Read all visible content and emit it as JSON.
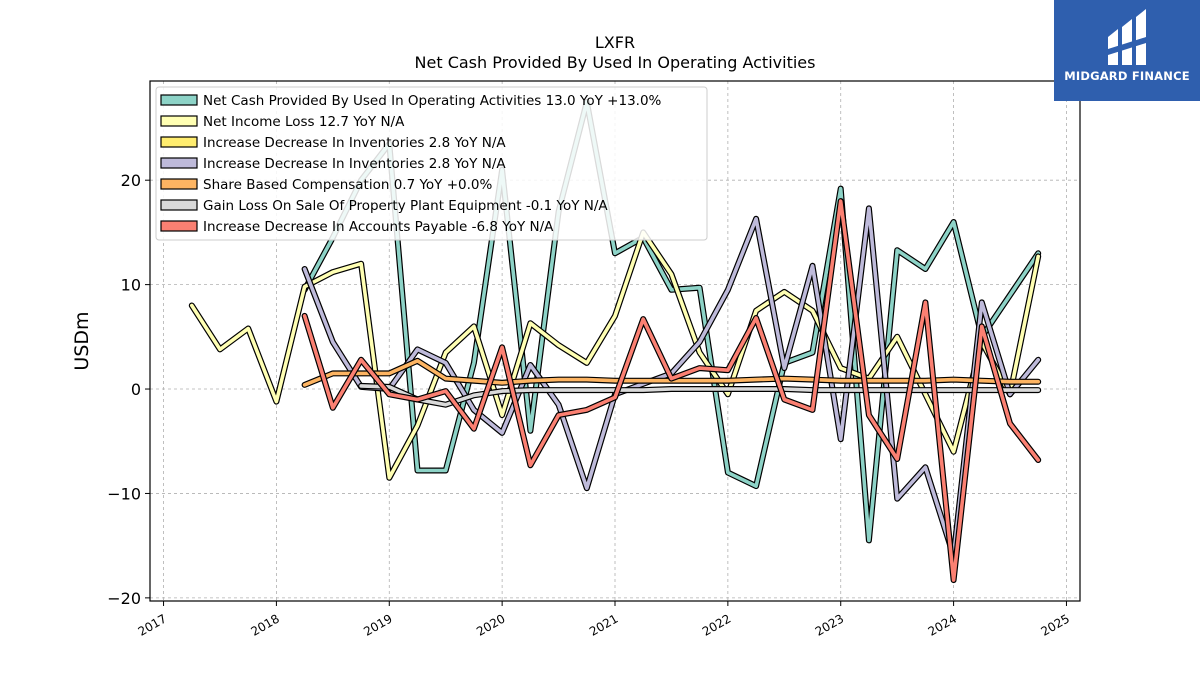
{
  "brand": {
    "name": "MIDGARD FINANCE",
    "bg_color": "#2f5fae"
  },
  "chart_data": {
    "type": "line",
    "title": "LXFR",
    "subtitle": "Net Cash Provided By Used In Operating Activities",
    "xlabel": "",
    "ylabel": "USDm",
    "xlim": [
      2016.88,
      2025.12
    ],
    "ylim": [
      -20.3,
      29.5
    ],
    "x_ticks": [
      2017,
      2018,
      2019,
      2020,
      2021,
      2022,
      2023,
      2024,
      2025
    ],
    "x_tick_labels": [
      "2017",
      "2018",
      "2019",
      "2020",
      "2021",
      "2022",
      "2023",
      "2024",
      "2025"
    ],
    "y_ticks": [
      -20,
      -10,
      0,
      10,
      20
    ],
    "y_tick_labels": [
      "−20",
      "−10",
      "0",
      "10",
      "20"
    ],
    "grid": true,
    "legend_position": "top-left",
    "series": [
      {
        "name": "Net Cash Provided By Used In Operating Activities",
        "legend_label": "Net Cash Provided By Used In Operating Activities  13.0 YoY +13.0%",
        "color": "#8dd3c7",
        "x": [
          2018.25,
          2018.5,
          2018.75,
          2019.0,
          2019.25,
          2019.5,
          2019.75,
          2020.0,
          2020.25,
          2020.5,
          2020.75,
          2021.0,
          2021.25,
          2021.5,
          2021.75,
          2022.0,
          2022.25,
          2022.5,
          2022.75,
          2023.0,
          2023.25,
          2023.5,
          2023.75,
          2024.0,
          2024.25,
          2024.5,
          2024.75
        ],
        "values": [
          9.5,
          14.5,
          20.0,
          23.5,
          -7.8,
          -7.8,
          2.5,
          21.0,
          -4.0,
          17.0,
          27.5,
          13.0,
          14.5,
          9.5,
          9.7,
          -8.0,
          -9.3,
          2.5,
          3.5,
          19.2,
          -14.5,
          13.3,
          11.5,
          16.0,
          5.0,
          9.0,
          13.0
        ]
      },
      {
        "name": "Net Income Loss",
        "legend_label": "Net Income Loss  12.7 YoY N/A",
        "color": "#ffffb3",
        "x": [
          2017.25,
          2017.5,
          2017.75,
          2018.0,
          2018.25,
          2018.5,
          2018.75,
          2019.0,
          2019.25,
          2019.5,
          2019.75,
          2020.0,
          2020.25,
          2020.5,
          2020.75,
          2021.0,
          2021.25,
          2021.5,
          2021.75,
          2022.0,
          2022.25,
          2022.5,
          2022.75,
          2023.0,
          2023.25,
          2023.5,
          2023.75,
          2024.0,
          2024.25,
          2024.5,
          2024.75
        ],
        "values": [
          8.0,
          3.8,
          5.8,
          -1.2,
          9.8,
          11.2,
          12.0,
          -8.5,
          -3.5,
          3.5,
          6.0,
          -2.5,
          6.3,
          4.2,
          2.5,
          7.0,
          15.0,
          11.0,
          3.5,
          -0.5,
          7.5,
          9.3,
          7.5,
          2.0,
          1.0,
          5.0,
          -0.5,
          -6.0,
          4.5,
          -0.5,
          12.7
        ]
      },
      {
        "name": "Increase Decrease In Inventories",
        "legend_label": "Increase Decrease In Inventories  2.8 YoY N/A",
        "color": "#ffed6f",
        "x": [],
        "values": []
      },
      {
        "name": "Increase Decrease In Inventories",
        "legend_label": "Increase Decrease In Inventories  2.8 YoY N/A",
        "color": "#bebada",
        "x": [
          2018.25,
          2018.5,
          2018.75,
          2019.0,
          2019.25,
          2019.5,
          2019.75,
          2020.0,
          2020.25,
          2020.5,
          2020.75,
          2021.0,
          2021.25,
          2021.5,
          2021.75,
          2022.0,
          2022.25,
          2022.5,
          2022.75,
          2023.0,
          2023.25,
          2023.5,
          2023.75,
          2024.0,
          2024.25,
          2024.5,
          2024.75
        ],
        "values": [
          11.5,
          4.5,
          0.2,
          0.0,
          3.8,
          2.5,
          -2.0,
          -4.2,
          2.3,
          -1.5,
          -9.5,
          -0.5,
          0.5,
          1.5,
          4.5,
          9.5,
          16.3,
          2.0,
          11.8,
          -4.8,
          17.3,
          -10.5,
          -7.5,
          -16.0,
          8.3,
          -0.5,
          2.8
        ]
      },
      {
        "name": "Share Based Compensation",
        "legend_label": "Share Based Compensation  0.7 YoY +0.0%",
        "color": "#fdb462",
        "x": [
          2018.25,
          2018.5,
          2018.75,
          2019.0,
          2019.25,
          2019.5,
          2019.75,
          2020.0,
          2020.25,
          2020.5,
          2020.75,
          2021.0,
          2021.25,
          2021.5,
          2021.75,
          2022.0,
          2022.25,
          2022.5,
          2022.75,
          2023.0,
          2023.25,
          2023.5,
          2023.75,
          2024.0,
          2024.25,
          2024.5,
          2024.75
        ],
        "values": [
          0.4,
          1.5,
          1.5,
          1.5,
          2.7,
          1.0,
          0.8,
          0.6,
          0.8,
          0.9,
          0.9,
          0.8,
          0.8,
          0.8,
          0.8,
          0.8,
          0.9,
          1.0,
          0.9,
          0.8,
          0.8,
          0.8,
          0.8,
          0.9,
          0.8,
          0.7,
          0.7
        ]
      },
      {
        "name": "Gain Loss On Sale Of Property Plant Equipment",
        "legend_label": "Gain Loss On Sale Of Property Plant Equipment  -0.1 YoY N/A",
        "color": "#d9d9d9",
        "x": [
          2018.75,
          2019.0,
          2019.25,
          2019.5,
          2019.75,
          2020.0,
          2020.25,
          2020.5,
          2020.75,
          2021.0,
          2021.25,
          2021.5,
          2021.75,
          2022.0,
          2022.25,
          2022.5,
          2022.75,
          2023.0,
          2023.25,
          2023.5,
          2023.75,
          2024.0,
          2024.25,
          2024.5,
          2024.75
        ],
        "values": [
          0.3,
          0.2,
          -1.0,
          -1.5,
          -0.6,
          -0.2,
          -0.1,
          -0.1,
          -0.1,
          -0.1,
          -0.1,
          0.0,
          0.0,
          0.0,
          0.0,
          0.0,
          -0.1,
          -0.1,
          -0.1,
          -0.1,
          -0.1,
          -0.1,
          -0.1,
          -0.1,
          -0.1
        ]
      },
      {
        "name": "Increase Decrease In Accounts Payable",
        "legend_label": "Increase Decrease In Accounts Payable  -6.8 YoY N/A",
        "color": "#fb8072",
        "x": [
          2018.25,
          2018.5,
          2018.75,
          2019.0,
          2019.25,
          2019.5,
          2019.75,
          2020.0,
          2020.25,
          2020.5,
          2020.75,
          2021.0,
          2021.25,
          2021.5,
          2021.75,
          2022.0,
          2022.25,
          2022.5,
          2022.75,
          2023.0,
          2023.25,
          2023.5,
          2023.75,
          2024.0,
          2024.25,
          2024.5,
          2024.75
        ],
        "values": [
          7.0,
          -1.8,
          2.8,
          -0.5,
          -1.0,
          -0.2,
          -3.8,
          4.0,
          -7.3,
          -2.5,
          -2.0,
          -0.8,
          6.7,
          1.0,
          2.0,
          1.8,
          6.8,
          -1.0,
          -2.0,
          18.0,
          -2.5,
          -6.7,
          8.3,
          -18.3,
          6.0,
          -3.3,
          -6.8
        ]
      }
    ]
  }
}
